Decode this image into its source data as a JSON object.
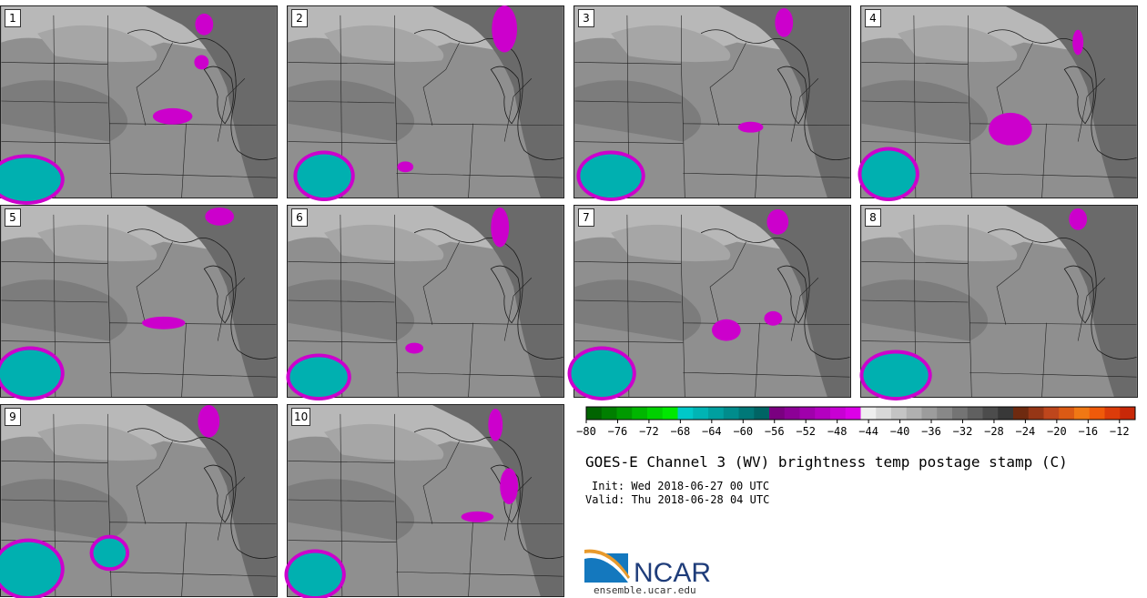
{
  "figure": {
    "title": "GOES-E Channel 3 (WV) brightness temp postage stamp (C)",
    "init": "Init: Wed 2018-06-27 00 UTC",
    "valid": "Valid: Thu 2018-06-28 04 UTC",
    "logo_text": "NCAR",
    "site_url": "ensemble.ucar.edu"
  },
  "members": [
    "1",
    "2",
    "3",
    "4",
    "5",
    "6",
    "7",
    "8",
    "9",
    "10"
  ],
  "colorbar": {
    "units": "C",
    "range": [
      -80,
      -10
    ],
    "tick_labels": [
      "−80",
      "−76",
      "−72",
      "−68",
      "−64",
      "−60",
      "−56",
      "−52",
      "−48",
      "−44",
      "−40",
      "−36",
      "−32",
      "−28",
      "−24",
      "−20",
      "−16",
      "−12"
    ],
    "colors": [
      "#006400",
      "#007f00",
      "#009a00",
      "#00b600",
      "#00d000",
      "#00e800",
      "#00c8c8",
      "#00b4b4",
      "#00a0a0",
      "#008c8c",
      "#007878",
      "#006464",
      "#7a0080",
      "#8c0096",
      "#a000ac",
      "#b400c0",
      "#c800d4",
      "#dc00e8",
      "#eeeeee",
      "#d8d8d8",
      "#c4c4c4",
      "#b0b0b0",
      "#9c9c9c",
      "#888888",
      "#747474",
      "#606060",
      "#4c4c4c",
      "#383838",
      "#6e2a10",
      "#963616",
      "#be461c",
      "#dc5a14",
      "#f07814",
      "#f05a0a",
      "#dc3c0a",
      "#c82808"
    ]
  },
  "colors": {
    "cold_cloud": "#00b0b0",
    "cold_edge": "#cc00cc",
    "background_gray": "#8f8f8f"
  }
}
